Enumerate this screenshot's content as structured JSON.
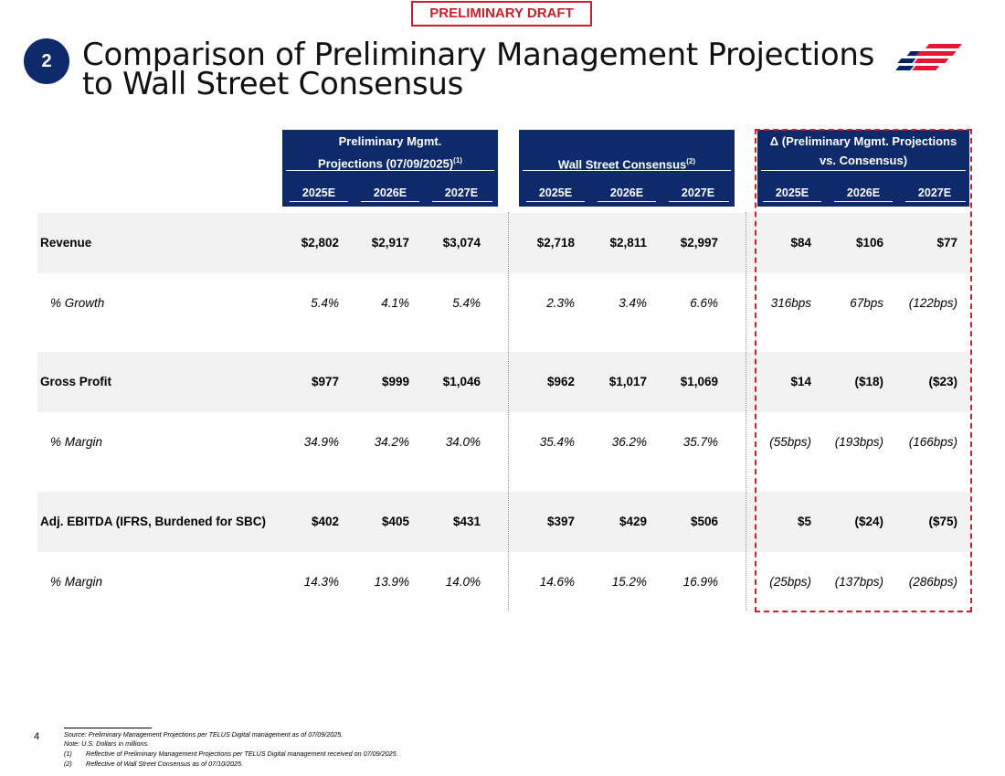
{
  "draft_label": "PRELIMINARY DRAFT",
  "section_number": "2",
  "title": {
    "line1": "Comparison of Preliminary Management Projections",
    "line2": "to Wall Street Consensus"
  },
  "logo_icon": "bank-flag-logo-icon",
  "headers": {
    "mgmt": {
      "line1": "Preliminary Mgmt.",
      "line2": "Projections (07/09/2025)",
      "sup": "(1)"
    },
    "consensus": {
      "line1": "Wall Street Consensus",
      "sup": "(2)"
    },
    "delta": {
      "line1": "Δ (Preliminary Mgmt. Projections",
      "line2": "vs. Consensus)"
    },
    "years": [
      "2025E",
      "2026E",
      "2027E"
    ]
  },
  "rows": [
    {
      "label": "Revenue",
      "italic": false,
      "mgmt": [
        "$2,802",
        "$2,917",
        "$3,074"
      ],
      "consensus": [
        "$2,718",
        "$2,811",
        "$2,997"
      ],
      "delta": [
        "$84",
        "$106",
        "$77"
      ]
    },
    {
      "label": "% Growth",
      "italic": true,
      "mgmt": [
        "5.4%",
        "4.1%",
        "5.4%"
      ],
      "consensus": [
        "2.3%",
        "3.4%",
        "6.6%"
      ],
      "delta": [
        "316bps",
        "67bps",
        "(122bps)"
      ]
    },
    {
      "label": "Gross Profit",
      "italic": false,
      "mgmt": [
        "$977",
        "$999",
        "$1,046"
      ],
      "consensus": [
        "$962",
        "$1,017",
        "$1,069"
      ],
      "delta": [
        "$14",
        "($18)",
        "($23)"
      ]
    },
    {
      "label": "% Margin",
      "italic": true,
      "mgmt": [
        "34.9%",
        "34.2%",
        "34.0%"
      ],
      "consensus": [
        "35.4%",
        "36.2%",
        "35.7%"
      ],
      "delta": [
        "(55bps)",
        "(193bps)",
        "(166bps)"
      ]
    },
    {
      "label": "Adj. EBITDA (IFRS, Burdened for SBC)",
      "italic": false,
      "mgmt": [
        "$402",
        "$405",
        "$431"
      ],
      "consensus": [
        "$397",
        "$429",
        "$506"
      ],
      "delta": [
        "$5",
        "($24)",
        "($75)"
      ]
    },
    {
      "label": "% Margin",
      "italic": true,
      "mgmt": [
        "14.3%",
        "13.9%",
        "14.0%"
      ],
      "consensus": [
        "14.6%",
        "15.2%",
        "16.9%"
      ],
      "delta": [
        "(25bps)",
        "(137bps)",
        "(286bps)"
      ]
    }
  ],
  "footer": {
    "page": "4",
    "source": "Source: Preliminary Management Projections per TELUS Digital management as of 07/09/2025.",
    "note": "Note: U.S. Dollars in millions.",
    "fn1_num": "(1)",
    "fn1": "Reflective of Preliminary Management Projections per TELUS Digital management received on 07/09/2025.",
    "fn2_num": "(2)",
    "fn2": "Reflective of Wall Street Consensus as of 07/10/2025."
  },
  "colors": {
    "navy": "#0f2a6b",
    "red": "#cc1f2b",
    "band": "#f2f2f2"
  }
}
